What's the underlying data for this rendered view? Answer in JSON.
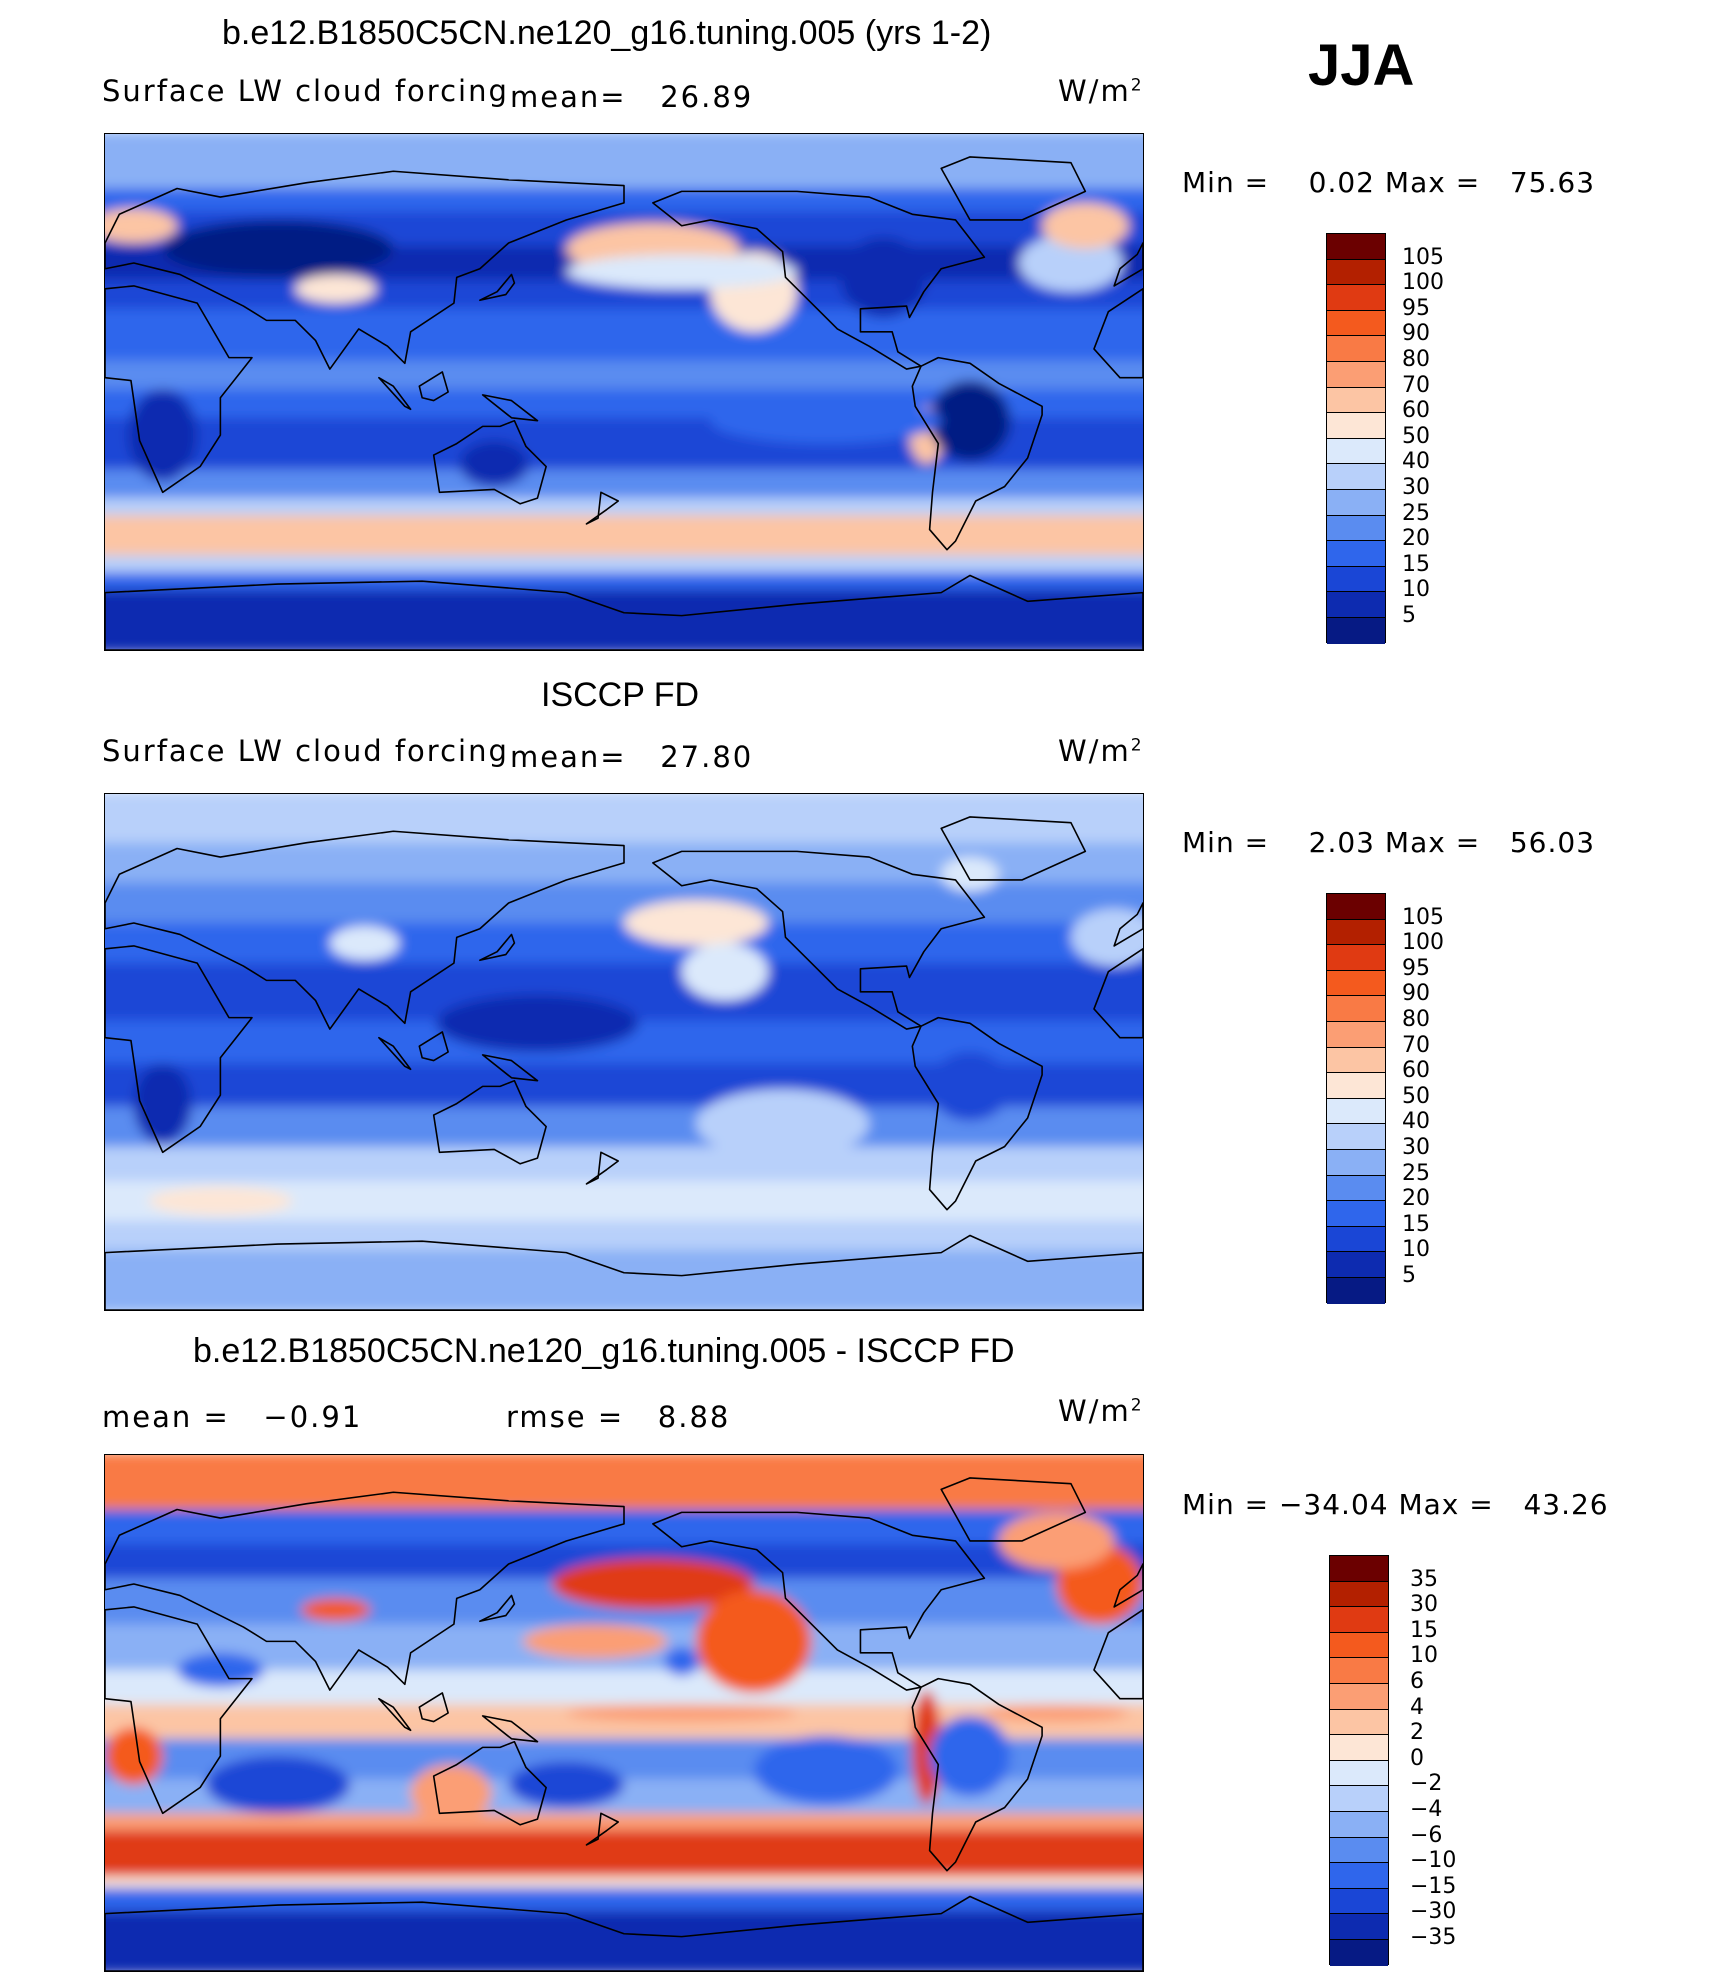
{
  "season": "JJA",
  "units": "W/m",
  "units_exp": "2",
  "chart_data": [
    {
      "type": "heatmap",
      "title": "b.e12.B1850C5CN.ne120_g16.tuning.005 (yrs 1-2)",
      "subtitle": "Surface LW cloud forcing",
      "mean_label": "mean=",
      "mean": "26.89",
      "min_label": "Min =",
      "min": "0.02",
      "max_label": "Max =",
      "max": "75.63",
      "colorbar_levels": [
        "105",
        "100",
        "95",
        "90",
        "80",
        "70",
        "60",
        "50",
        "40",
        "30",
        "25",
        "20",
        "15",
        "10",
        "5"
      ],
      "colorbar_colors": [
        "#6b0000",
        "#b32000",
        "#e03a12",
        "#f45a1e",
        "#f97a45",
        "#fb9e74",
        "#fcc5a4",
        "#fde6d6",
        "#dbe9fb",
        "#b8d0fa",
        "#8ab0f5",
        "#5a8cf0",
        "#2f66ec",
        "#1a46d6",
        "#0d2bb0",
        "#061a84"
      ]
    },
    {
      "type": "heatmap",
      "title": "ISCCP FD",
      "subtitle": "Surface LW cloud forcing",
      "mean_label": "mean=",
      "mean": "27.80",
      "min_label": "Min =",
      "min": "2.03",
      "max_label": "Max =",
      "max": "56.03",
      "colorbar_levels": [
        "105",
        "100",
        "95",
        "90",
        "80",
        "70",
        "60",
        "50",
        "40",
        "30",
        "25",
        "20",
        "15",
        "10",
        "5"
      ],
      "colorbar_colors": [
        "#6b0000",
        "#b32000",
        "#e03a12",
        "#f45a1e",
        "#f97a45",
        "#fb9e74",
        "#fcc5a4",
        "#fde6d6",
        "#dbe9fb",
        "#b8d0fa",
        "#8ab0f5",
        "#5a8cf0",
        "#2f66ec",
        "#1a46d6",
        "#0d2bb0",
        "#061a84"
      ]
    },
    {
      "type": "heatmap",
      "title": "b.e12.B1850C5CN.ne120_g16.tuning.005 - ISCCP FD",
      "mean_label": "mean =",
      "mean": "−0.91",
      "rmse_label": "rmse =",
      "rmse": "8.88",
      "min_label": "Min =",
      "min": "−34.04",
      "max_label": "Max =",
      "max": "43.26",
      "colorbar_levels": [
        "35",
        "30",
        "15",
        "10",
        "6",
        "4",
        "2",
        "0",
        "−2",
        "−4",
        "−6",
        "−10",
        "−15",
        "−30",
        "−35"
      ],
      "colorbar_colors": [
        "#6b0000",
        "#b32000",
        "#e03a12",
        "#f45a1e",
        "#f97a45",
        "#fb9e74",
        "#fcc5a4",
        "#fde6d6",
        "#dbe9fb",
        "#b8d0fa",
        "#8ab0f5",
        "#5a8cf0",
        "#2f66ec",
        "#1a46d6",
        "#0d2bb0",
        "#061a84"
      ]
    }
  ]
}
